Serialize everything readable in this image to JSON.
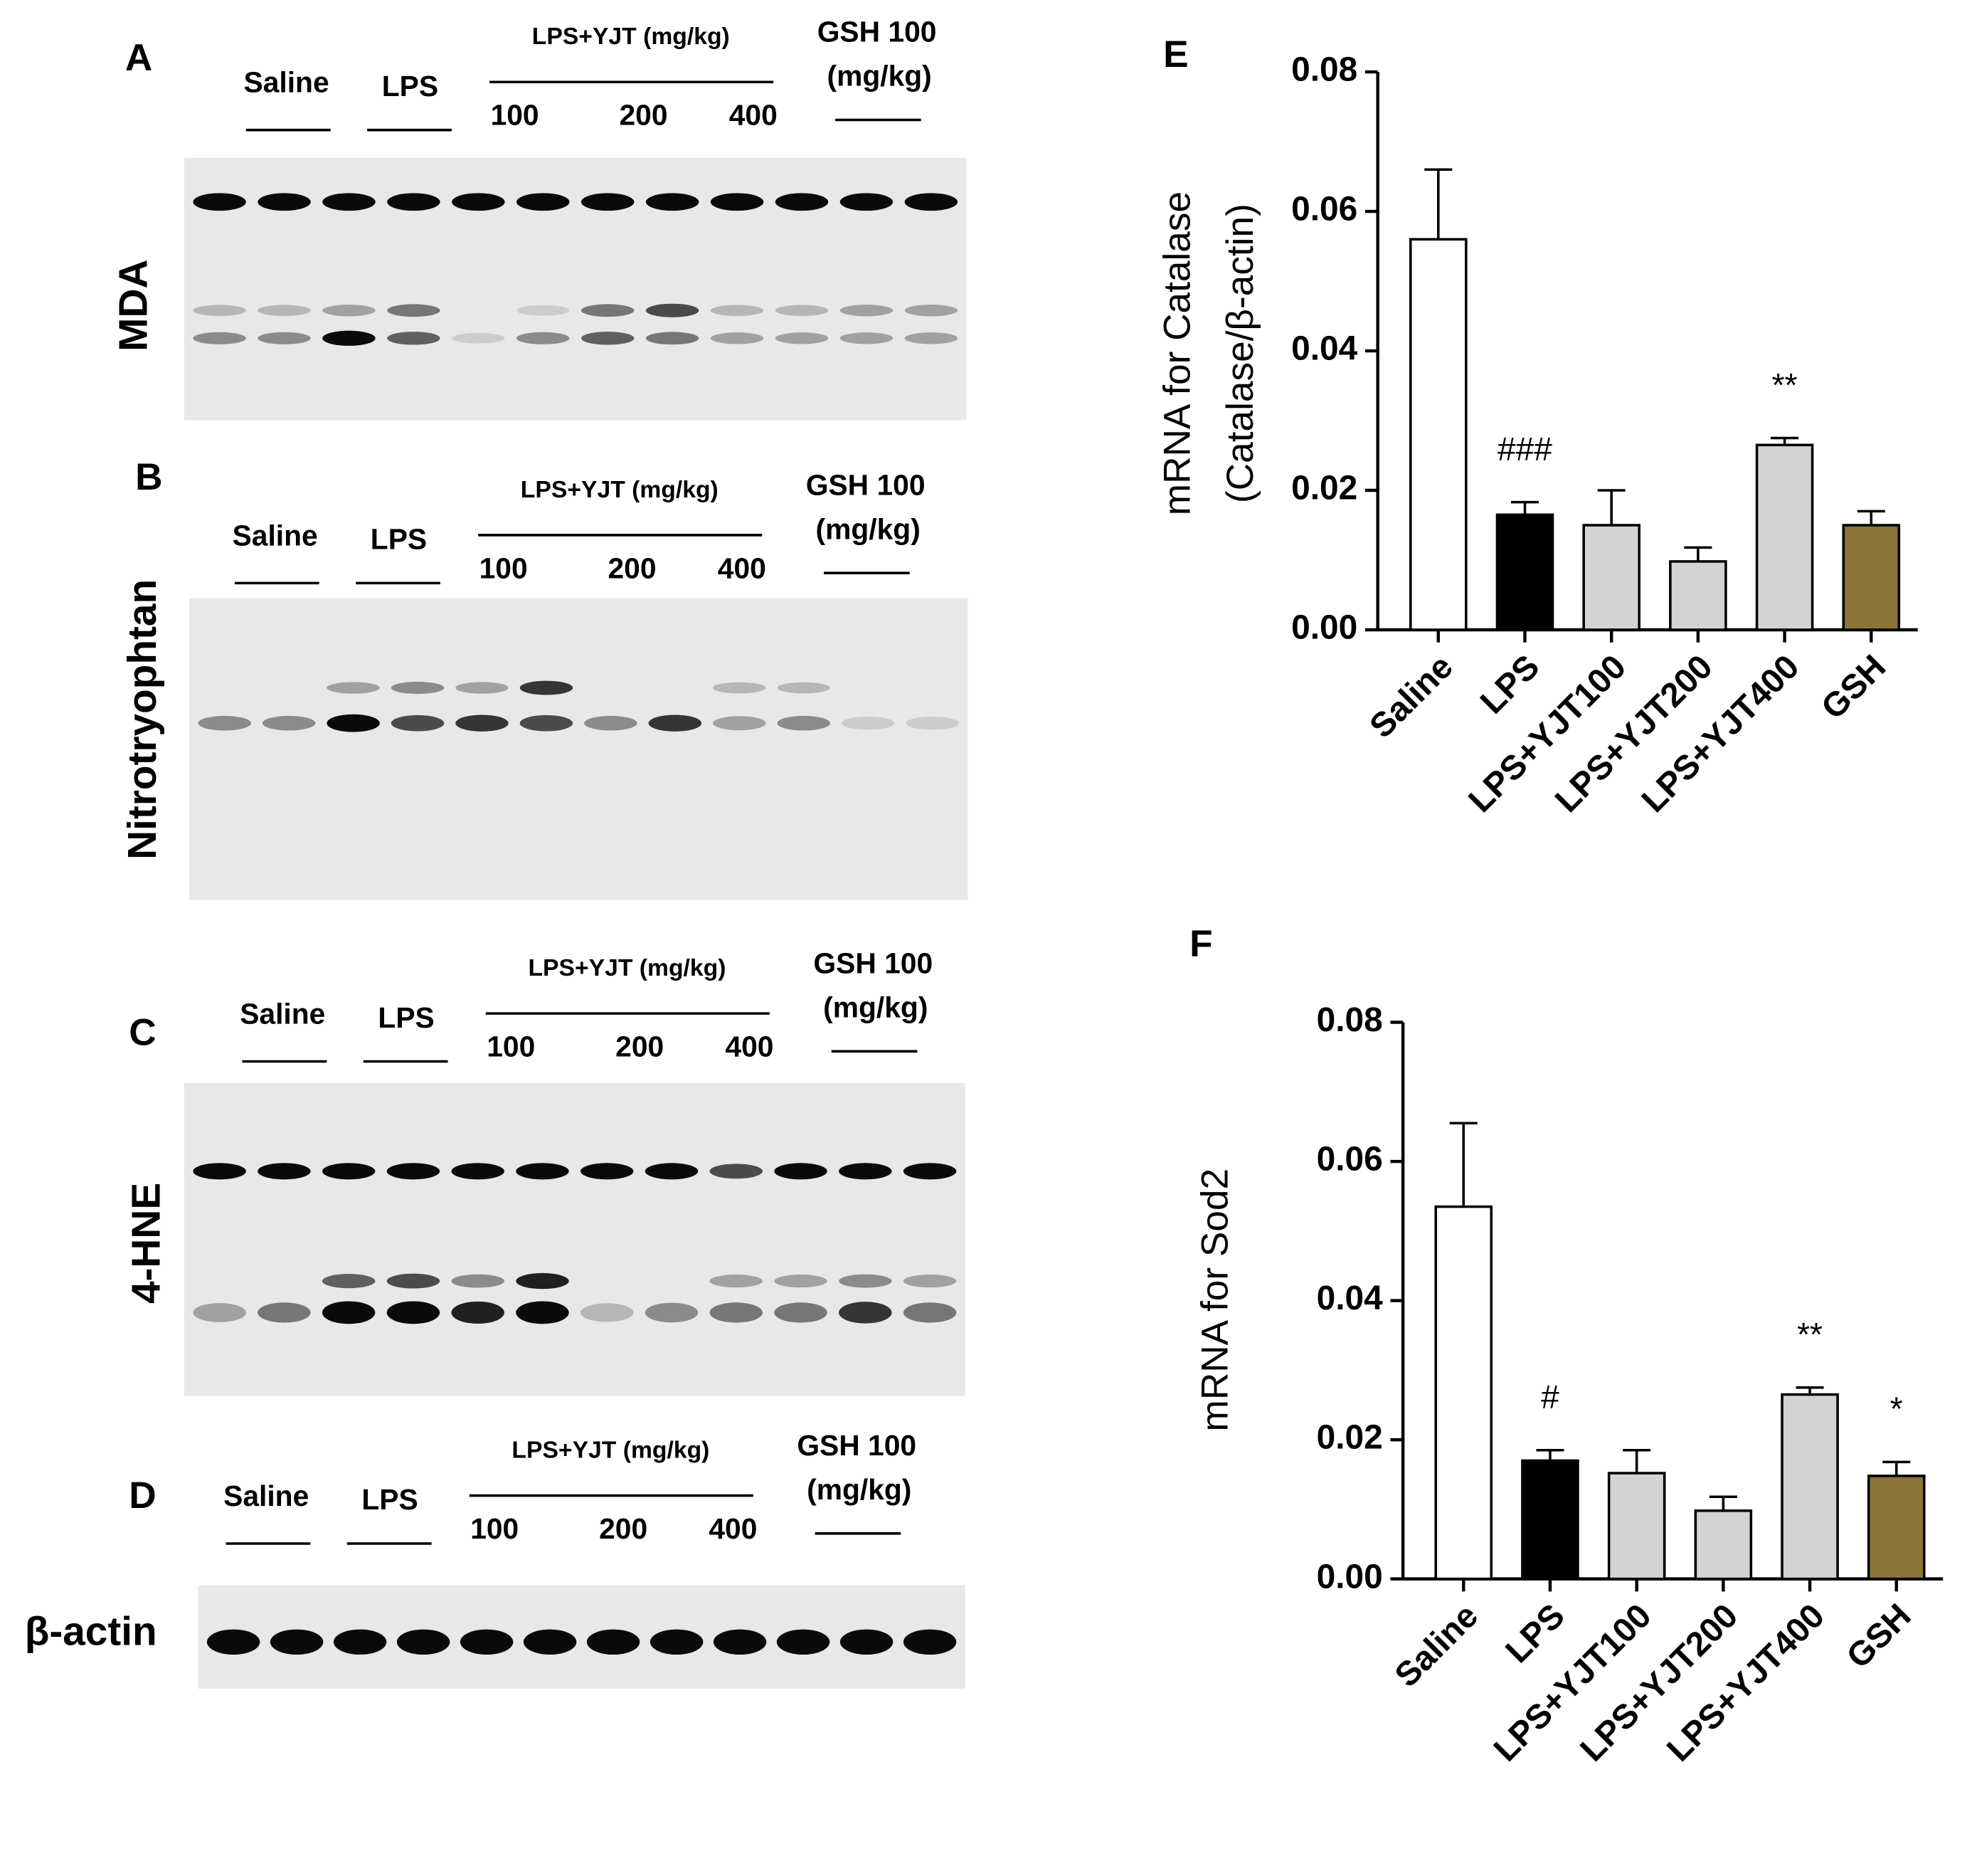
{
  "blots": [
    {
      "letter": "A",
      "marker": "MDA",
      "saline": "Saline",
      "lps": "LPS",
      "yjt": "LPS+YJT (mg/kg)",
      "doses": [
        "100",
        "200",
        "400"
      ],
      "gsh": "GSH 100",
      "gsh_unit": "(mg/kg)"
    },
    {
      "letter": "B",
      "marker": "Nitrotryophtan",
      "saline": "Saline",
      "lps": "LPS",
      "yjt": "LPS+YJT (mg/kg)",
      "doses": [
        "100",
        "200",
        "400"
      ],
      "gsh": "GSH 100",
      "gsh_unit": "(mg/kg)"
    },
    {
      "letter": "C",
      "marker": "4-HNE",
      "saline": "Saline",
      "lps": "LPS",
      "yjt": "LPS+YJT (mg/kg)",
      "doses": [
        "100",
        "200",
        "400"
      ],
      "gsh": "GSH 100",
      "gsh_unit": "(mg/kg)"
    },
    {
      "letter": "D",
      "marker": "β-actin",
      "saline": "Saline",
      "lps": "LPS",
      "yjt": "LPS+YJT (mg/kg)",
      "doses": [
        "100",
        "200",
        "400"
      ],
      "gsh": "GSH 100",
      "gsh_unit": "(mg/kg)"
    }
  ],
  "chart_data": [
    {
      "type": "bar",
      "panel": "E",
      "y_label": [
        "mRNA for Catalase",
        "(Catalase/β-actin)"
      ],
      "categories": [
        "Saline",
        "LPS",
        "LPS+YJT100",
        "LPS+YJT200",
        "LPS+YJT400",
        "GSH"
      ],
      "values": [
        0.056,
        0.0165,
        0.015,
        0.0098,
        0.0265,
        0.015
      ],
      "errors": [
        0.01,
        0.0018,
        0.005,
        0.002,
        0.001,
        0.002
      ],
      "colors": [
        "#ffffff",
        "#000000",
        "#d3d3d3",
        "#d3d3d3",
        "#d3d3d3",
        "#8b7536"
      ],
      "annotations": [
        null,
        "###",
        null,
        null,
        "**",
        null
      ],
      "ylim": [
        0,
        0.08
      ],
      "yticks": [
        {
          "value": 0,
          "label": "0.00"
        },
        0.02,
        0.04,
        0.06,
        0.08
      ]
    },
    {
      "type": "bar",
      "panel": "F",
      "y_label": [
        "mRNA for Sod2"
      ],
      "categories": [
        "Saline",
        "LPS",
        "LPS+YJT100",
        "LPS+YJT200",
        "LPS+YJT400",
        "GSH"
      ],
      "values": [
        0.0535,
        0.017,
        0.0152,
        0.0098,
        0.0265,
        0.0148
      ],
      "errors": [
        0.012,
        0.0015,
        0.0033,
        0.002,
        0.001,
        0.002
      ],
      "colors": [
        "#ffffff",
        "#000000",
        "#d3d3d3",
        "#d3d3d3",
        "#d3d3d3",
        "#8b7536"
      ],
      "annotations": [
        null,
        "#",
        null,
        null,
        "**",
        "*"
      ],
      "ylim": [
        0,
        0.08
      ],
      "yticks": [
        {
          "value": 0,
          "label": "0.00"
        },
        0.02,
        0.04,
        0.06,
        0.08
      ]
    }
  ]
}
